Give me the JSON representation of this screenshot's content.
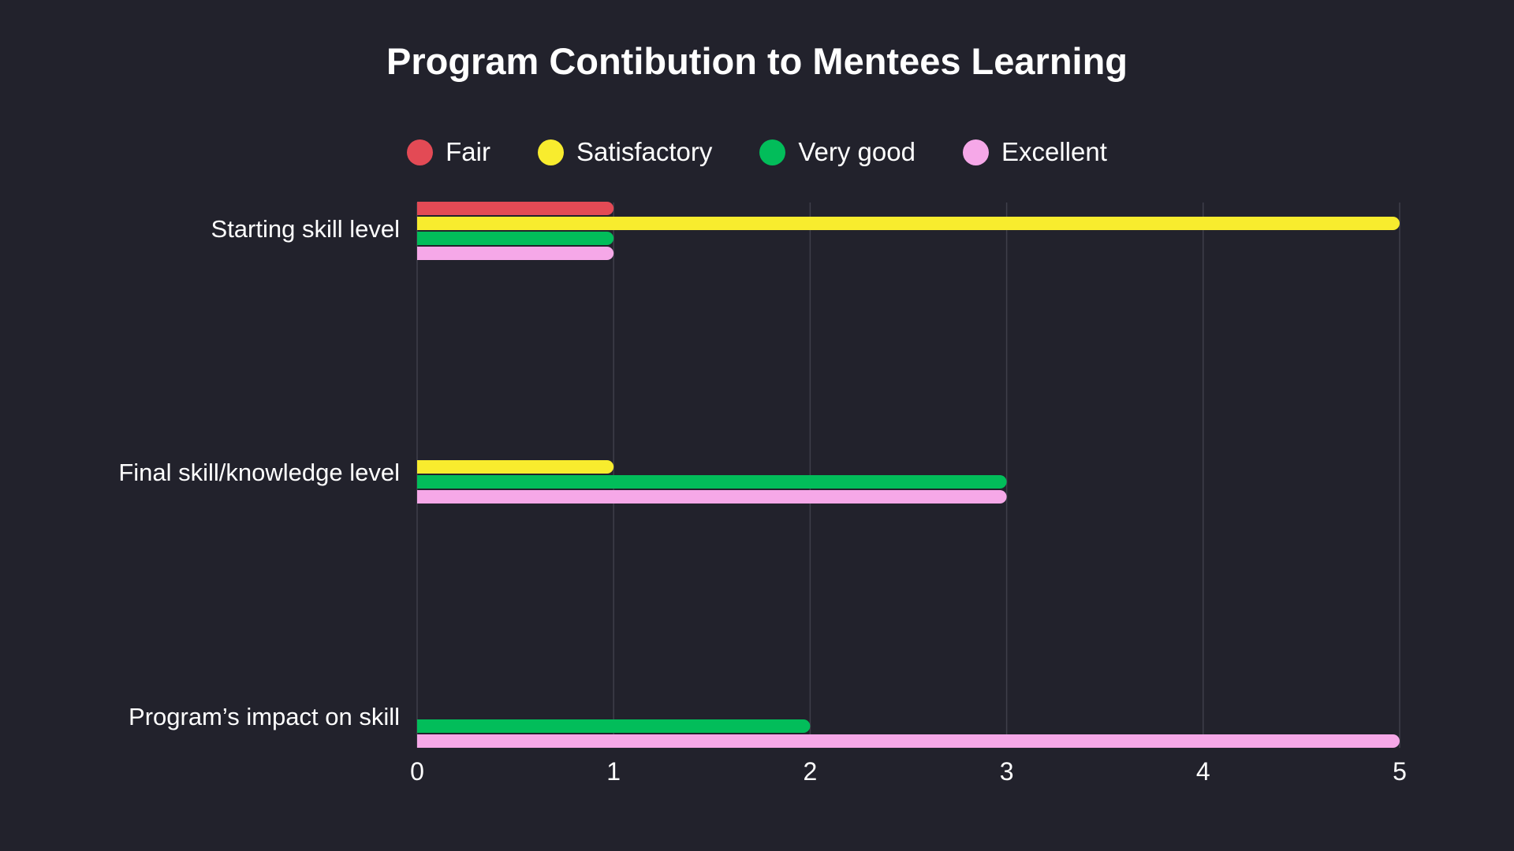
{
  "chart_data": {
    "type": "bar",
    "orientation": "horizontal",
    "title": "Program Contibution to Mentees Learning",
    "categories": [
      "Starting skill level",
      "Final skill/knowledge level",
      "Program’s impact on skill"
    ],
    "series": [
      {
        "name": "Fair",
        "color": "#e34a55",
        "values": [
          1,
          0,
          0
        ]
      },
      {
        "name": "Satisfactory",
        "color": "#f8ec2e",
        "values": [
          5,
          1,
          0
        ]
      },
      {
        "name": "Very good",
        "color": "#02bd5a",
        "values": [
          1,
          3,
          2
        ]
      },
      {
        "name": "Excellent",
        "color": "#f6a8e8",
        "values": [
          1,
          3,
          5
        ]
      }
    ],
    "xlim": [
      0,
      5
    ],
    "xticks": [
      "0",
      "1",
      "2",
      "3",
      "4",
      "5"
    ],
    "grid": true,
    "legend": "top"
  }
}
